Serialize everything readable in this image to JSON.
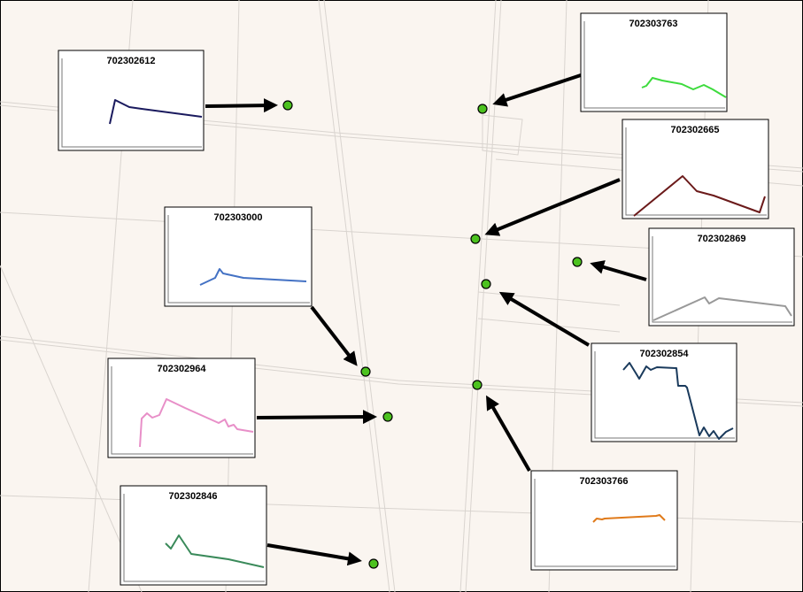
{
  "map": {
    "charts": [
      {
        "label": "702302612"
      },
      {
        "label": "702303763"
      },
      {
        "label": "702302665"
      },
      {
        "label": "702303000"
      },
      {
        "label": "702302869"
      },
      {
        "label": "702302854"
      },
      {
        "label": "702302964"
      },
      {
        "label": "702303766"
      },
      {
        "label": "702302846"
      }
    ]
  }
}
